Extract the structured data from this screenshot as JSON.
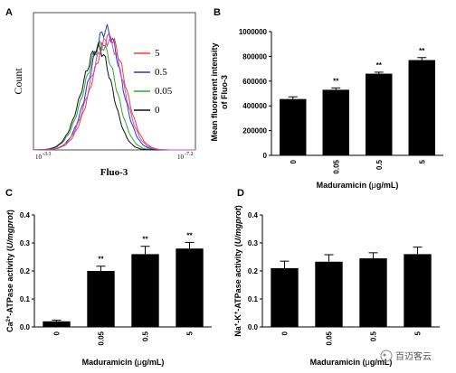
{
  "watermark": "百迈客云",
  "chart_data": [
    {
      "panel": "A",
      "type": "line",
      "ylabel": "Count",
      "xlabel": "Fluo-3",
      "xscale": "log",
      "xlim_labels": [
        "10^-3.3",
        "10^-7.2"
      ],
      "x_tick_labels": [
        "-3.3",
        "-7.2"
      ],
      "legend": [
        {
          "name": "5",
          "color": "#ff3b30"
        },
        {
          "name": "0.5",
          "color": "#1f3cc8"
        },
        {
          "name": "0.05",
          "color": "#2fa82f"
        },
        {
          "name": "0",
          "color": "#111111"
        }
      ],
      "legend_position": "right",
      "series": [
        {
          "name": "5",
          "color": "#ff3b30",
          "peak_x": 0.47,
          "peak_y": 0.86,
          "width": 0.11
        },
        {
          "name": "0.5",
          "color": "#1f3cc8",
          "peak_x": 0.45,
          "peak_y": 0.92,
          "width": 0.105
        },
        {
          "name": "0.05",
          "color": "#2fa82f",
          "peak_x": 0.42,
          "peak_y": 0.8,
          "width": 0.105
        },
        {
          "name": "0",
          "color": "#111111",
          "peak_x": 0.4,
          "peak_y": 0.78,
          "width": 0.1
        },
        {
          "name": "",
          "color": "#c04fc8",
          "peak_x": 0.46,
          "peak_y": 0.84,
          "width": 0.11
        }
      ]
    },
    {
      "panel": "B",
      "type": "bar",
      "categories": [
        "0",
        "0.05",
        "0.5",
        "5"
      ],
      "values": [
        455000,
        530000,
        660000,
        770000
      ],
      "errors": [
        18000,
        15000,
        12000,
        20000
      ],
      "significance": [
        "",
        "**",
        "**",
        "**"
      ],
      "ylabel": "Mean fluorenent intensity\nof Fluo-3",
      "xlabel": "Maduramicin (μg/mL)",
      "ylim": [
        0,
        1000000
      ],
      "yticks": [
        "0",
        "200000",
        "400000",
        "600000",
        "800000",
        "1000000"
      ]
    },
    {
      "panel": "C",
      "type": "bar",
      "categories": [
        "0",
        "0.05",
        "0.5",
        "5"
      ],
      "values": [
        0.02,
        0.2,
        0.26,
        0.28
      ],
      "errors": [
        0.004,
        0.017,
        0.028,
        0.022
      ],
      "significance": [
        "",
        "**",
        "**",
        "**"
      ],
      "ylabel": "Ca2+-ATPase activity (U/mgprot)",
      "xlabel": "Maduramicin (μg/mL)",
      "ylim": [
        0,
        0.4
      ],
      "yticks": [
        "0.0",
        "0.1",
        "0.2",
        "0.3",
        "0.4"
      ]
    },
    {
      "panel": "D",
      "type": "bar",
      "categories": [
        "0",
        "0.05",
        "0.5",
        "5"
      ],
      "values": [
        0.21,
        0.233,
        0.245,
        0.26
      ],
      "errors": [
        0.025,
        0.025,
        0.02,
        0.025
      ],
      "significance": [
        "",
        "",
        "",
        ""
      ],
      "ylabel": "Na+-K+-ATPase activity (U/mgprot)",
      "xlabel": "Maduramicin (μg/mL)",
      "ylim": [
        0,
        0.4
      ],
      "yticks": [
        "0.0",
        "0.1",
        "0.2",
        "0.3",
        "0.4"
      ]
    }
  ]
}
